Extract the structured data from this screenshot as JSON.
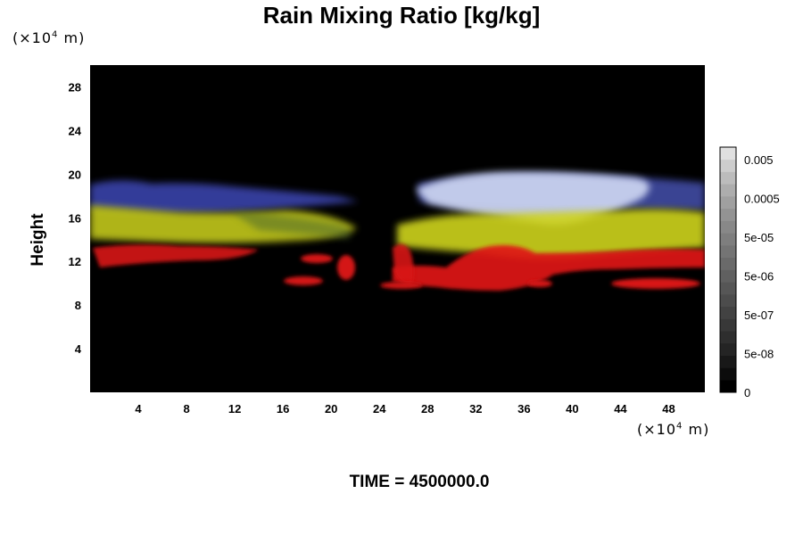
{
  "chart_data": {
    "type": "heatmap",
    "title": "Rain Mixing Ratio [kg/kg]",
    "ylabel": "Height",
    "xunit": "(×10⁴ m)",
    "yunit": "(×10⁴ m)",
    "footer": "TIME = 4500000.0",
    "xlim": [
      0,
      51
    ],
    "ylim": [
      0,
      30
    ],
    "x_ticks": [
      4,
      8,
      12,
      16,
      20,
      24,
      28,
      32,
      36,
      40,
      44,
      48
    ],
    "y_ticks": [
      4,
      8,
      12,
      16,
      20,
      24,
      28
    ],
    "colorbar": {
      "labels": [
        "0.005",
        "0.0005",
        "5e-05",
        "5e-06",
        "5e-07",
        "5e-08",
        "0"
      ],
      "levels": 20,
      "colors": [
        "#000000",
        "#0c0c0c",
        "#181818",
        "#242424",
        "#2e2e2e",
        "#383838",
        "#424242",
        "#4c4c4c",
        "#565656",
        "#606060",
        "#6a6a6a",
        "#747474",
        "#7e7e7e",
        "#888888",
        "#939393",
        "#a0a0a0",
        "#adadad",
        "#bcbcbc",
        "#cdcdcd",
        "#e0e0e0"
      ]
    },
    "background_color": "#000000",
    "layer_colors": {
      "blue": "#3c46b4",
      "white": "#c8d2f0",
      "yellow": "#cdd21e",
      "red": "#dc1414"
    }
  }
}
